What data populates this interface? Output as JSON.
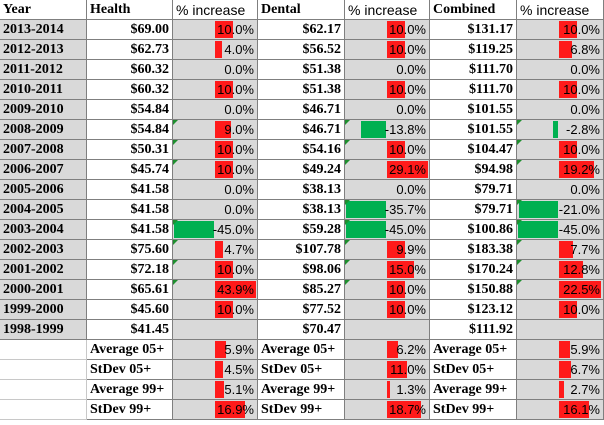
{
  "headers": {
    "year": "Year",
    "health": "Health",
    "health_pct": "% increase",
    "dental": "Dental",
    "dental_pct": "% increase",
    "combined": "Combined",
    "combined_pct": "% increase"
  },
  "rows": [
    {
      "year": "2013-2014",
      "health": "$69.00",
      "health_pct": "10.0%",
      "health_bar": 10.0,
      "dental": "$62.17",
      "dental_pct": "10.0%",
      "dental_bar": 10.0,
      "combined": "$131.17",
      "combined_pct": "10.0%",
      "combined_bar": 10.0
    },
    {
      "year": "2012-2013",
      "health": "$62.73",
      "health_pct": "4.0%",
      "health_bar": 4.0,
      "dental": "$56.52",
      "dental_pct": "10.0%",
      "dental_bar": 10.0,
      "combined": "$119.25",
      "combined_pct": "6.8%",
      "combined_bar": 6.8
    },
    {
      "year": "2011-2012",
      "health": "$60.32",
      "health_pct": "0.0%",
      "health_bar": 0,
      "dental": "$51.38",
      "dental_pct": "0.0%",
      "dental_bar": 0,
      "combined": "$111.70",
      "combined_pct": "0.0%",
      "combined_bar": 0
    },
    {
      "year": "2010-2011",
      "health": "$60.32",
      "health_pct": "10.0%",
      "health_bar": 10.0,
      "dental": "$51.38",
      "dental_pct": "10.0%",
      "dental_bar": 10.0,
      "combined": "$111.70",
      "combined_pct": "10.0%",
      "combined_bar": 10.0
    },
    {
      "year": "2009-2010",
      "health": "$54.84",
      "health_pct": "0.0%",
      "health_bar": 0,
      "dental": "$46.71",
      "dental_pct": "0.0%",
      "dental_bar": 0,
      "combined": "$101.55",
      "combined_pct": "0.0%",
      "combined_bar": 0
    },
    {
      "year": "2008-2009",
      "health": "$54.84",
      "health_pct": "9.0%",
      "health_bar": 9.0,
      "dental": "$46.71",
      "dental_pct": "-13.8%",
      "dental_bar": -13.8,
      "combined": "$101.55",
      "combined_pct": "-2.8%",
      "combined_bar": -2.8
    },
    {
      "year": "2007-2008",
      "health": "$50.31",
      "health_pct": "10.0%",
      "health_bar": 10.0,
      "dental": "$54.16",
      "dental_pct": "10.0%",
      "dental_bar": 10.0,
      "combined": "$104.47",
      "combined_pct": "10.0%",
      "combined_bar": 10.0
    },
    {
      "year": "2006-2007",
      "health": "$45.74",
      "health_pct": "10.0%",
      "health_bar": 10.0,
      "dental": "$49.24",
      "dental_pct": "29.1%",
      "dental_bar": 29.1,
      "combined": "$94.98",
      "combined_pct": "19.2%",
      "combined_bar": 19.2
    },
    {
      "year": "2005-2006",
      "health": "$41.58",
      "health_pct": "0.0%",
      "health_bar": 0,
      "dental": "$38.13",
      "dental_pct": "0.0%",
      "dental_bar": 0,
      "combined": "$79.71",
      "combined_pct": "0.0%",
      "combined_bar": 0
    },
    {
      "year": "2004-2005",
      "health": "$41.58",
      "health_pct": "0.0%",
      "health_bar": 0,
      "dental": "$38.13",
      "dental_pct": "-35.7%",
      "dental_bar": -35.7,
      "combined": "$79.71",
      "combined_pct": "-21.0%",
      "combined_bar": -21.0
    },
    {
      "year": "2003-2004",
      "health": "$41.58",
      "health_pct": "-45.0%",
      "health_bar": -45.0,
      "dental": "$59.28",
      "dental_pct": "-45.0%",
      "dental_bar": -45.0,
      "combined": "$100.86",
      "combined_pct": "-45.0%",
      "combined_bar": -45.0
    },
    {
      "year": "2002-2003",
      "health": "$75.60",
      "health_pct": "4.7%",
      "health_bar": 4.7,
      "dental": "$107.78",
      "dental_pct": "9.9%",
      "dental_bar": 9.9,
      "combined": "$183.38",
      "combined_pct": "7.7%",
      "combined_bar": 7.7
    },
    {
      "year": "2001-2002",
      "health": "$72.18",
      "health_pct": "10.0%",
      "health_bar": 10.0,
      "dental": "$98.06",
      "dental_pct": "15.0%",
      "dental_bar": 15.0,
      "combined": "$170.24",
      "combined_pct": "12.8%",
      "combined_bar": 12.8
    },
    {
      "year": "2000-2001",
      "health": "$65.61",
      "health_pct": "43.9%",
      "health_bar": 43.9,
      "dental": "$85.27",
      "dental_pct": "10.0%",
      "dental_bar": 10.0,
      "combined": "$150.88",
      "combined_pct": "22.5%",
      "combined_bar": 22.5
    },
    {
      "year": "1999-2000",
      "health": "$45.60",
      "health_pct": "10.0%",
      "health_bar": 10.0,
      "dental": "$77.52",
      "dental_pct": "10.0%",
      "dental_bar": 10.0,
      "combined": "$123.12",
      "combined_pct": "10.0%",
      "combined_bar": 10.0
    },
    {
      "year": "1998-1999",
      "health": "$41.45",
      "health_pct": "",
      "health_bar": null,
      "dental": "$70.47",
      "dental_pct": "",
      "dental_bar": null,
      "combined": "$111.92",
      "combined_pct": "",
      "combined_bar": null
    }
  ],
  "stats": [
    {
      "health_label": "Average 05+",
      "health_val": "5.9%",
      "health_bar": 5.9,
      "dental_label": "Average 05+",
      "dental_val": "6.2%",
      "dental_bar": 6.2,
      "combined_label": "Average 05+",
      "combined_val": "5.9%",
      "combined_bar": 5.9
    },
    {
      "health_label": "StDev 05+",
      "health_val": "4.5%",
      "health_bar": 4.5,
      "dental_label": "StDev 05+",
      "dental_val": "11.0%",
      "dental_bar": 11.0,
      "combined_label": "StDev 05+",
      "combined_val": "6.7%",
      "combined_bar": 6.7
    },
    {
      "health_label": "Average 99+",
      "health_val": "5.1%",
      "health_bar": 5.1,
      "dental_label": "Average 99+",
      "dental_val": "1.3%",
      "dental_bar": 1.3,
      "combined_label": "Average 99+",
      "combined_val": "2.7%",
      "combined_bar": 2.7
    },
    {
      "health_label": "StDev 99+",
      "health_val": "16.9%",
      "health_bar": 16.9,
      "dental_label": "StDev 99+",
      "dental_val": "18.7%",
      "dental_bar": 18.7,
      "combined_label": "StDev 99+",
      "combined_val": "16.1%",
      "combined_bar": 16.1
    }
  ],
  "bar_scale_max": 45,
  "colors": {
    "positive_bar": "#ff1a1a",
    "negative_bar": "#00b050",
    "header_bg": "#d9d9d9"
  }
}
